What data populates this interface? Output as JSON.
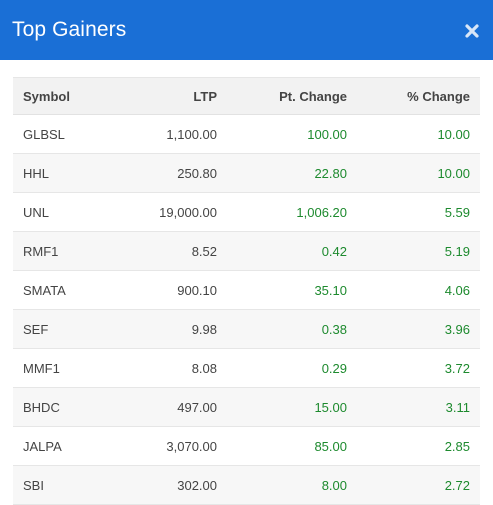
{
  "header": {
    "title": "Top Gainers",
    "close_icon": "close-icon"
  },
  "table": {
    "columns": [
      "Symbol",
      "LTP",
      "Pt. Change",
      "% Change"
    ],
    "rows": [
      {
        "symbol": "GLBSL",
        "ltp": "1,100.00",
        "pt_change": "100.00",
        "pct_change": "10.00"
      },
      {
        "symbol": "HHL",
        "ltp": "250.80",
        "pt_change": "22.80",
        "pct_change": "10.00"
      },
      {
        "symbol": "UNL",
        "ltp": "19,000.00",
        "pt_change": "1,006.20",
        "pct_change": "5.59"
      },
      {
        "symbol": "RMF1",
        "ltp": "8.52",
        "pt_change": "0.42",
        "pct_change": "5.19"
      },
      {
        "symbol": "SMATA",
        "ltp": "900.10",
        "pt_change": "35.10",
        "pct_change": "4.06"
      },
      {
        "symbol": "SEF",
        "ltp": "9.98",
        "pt_change": "0.38",
        "pct_change": "3.96"
      },
      {
        "symbol": "MMF1",
        "ltp": "8.08",
        "pt_change": "0.29",
        "pct_change": "3.72"
      },
      {
        "symbol": "BHDC",
        "ltp": "497.00",
        "pt_change": "15.00",
        "pct_change": "3.11"
      },
      {
        "symbol": "JALPA",
        "ltp": "3,070.00",
        "pt_change": "85.00",
        "pct_change": "2.85"
      },
      {
        "symbol": "SBI",
        "ltp": "302.00",
        "pt_change": "8.00",
        "pct_change": "2.72"
      }
    ]
  },
  "colors": {
    "header_bg": "#1a6fd6",
    "gain": "#1d8a2e"
  }
}
